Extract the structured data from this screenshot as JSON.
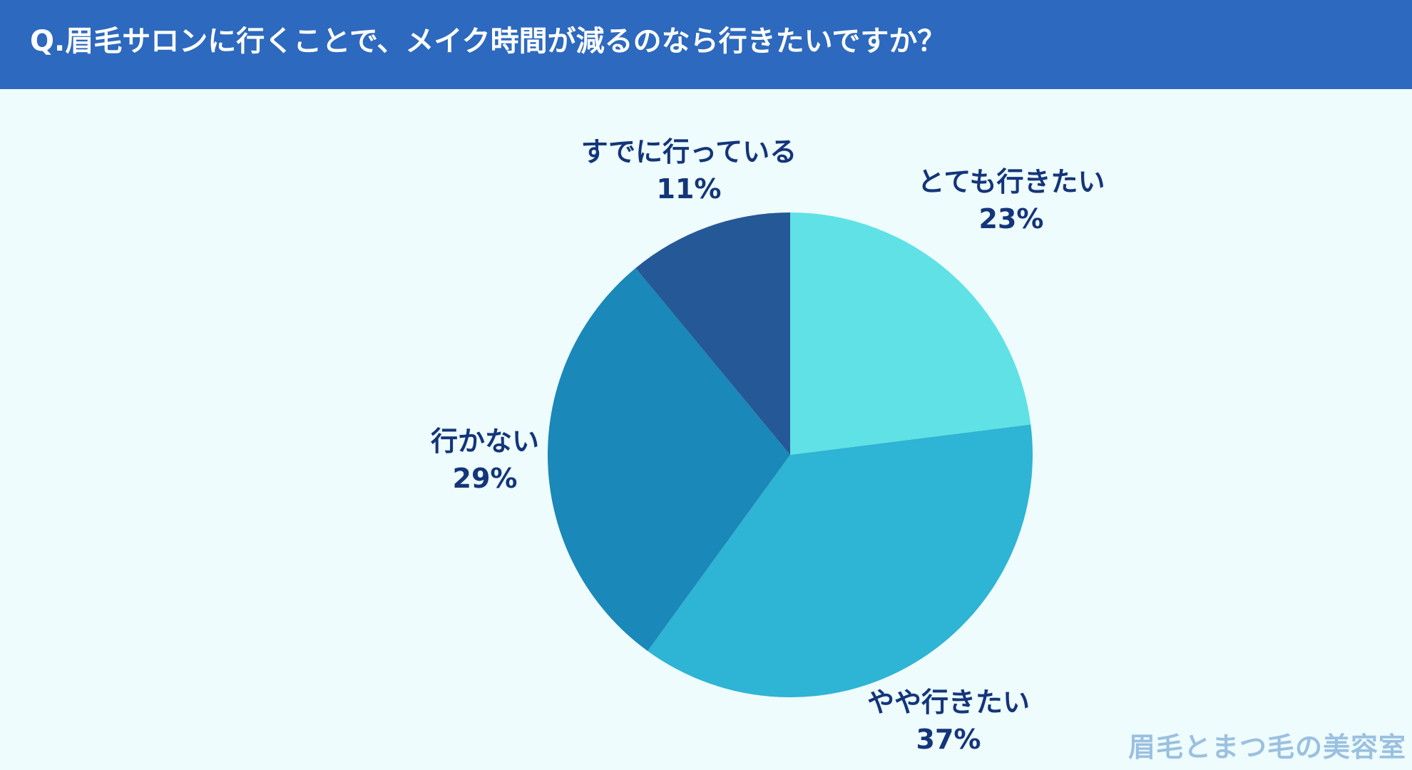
{
  "header": {
    "title": "Q.眉毛サロンに行くことで、メイク時間が減るのなら行きたいですか？"
  },
  "chart_data": {
    "type": "pie",
    "start": "12 o'clock",
    "direction": "clockwise",
    "categories": [
      "とても行きたい",
      "やや行きたい",
      "行かない",
      "すでに行っている"
    ],
    "values": [
      23,
      37,
      29,
      11
    ],
    "value_labels": [
      "23%",
      "37%",
      "29%",
      "11%"
    ],
    "colors": [
      "#5fe1e6",
      "#2eb4d4",
      "#1a88b8",
      "#255896"
    ],
    "label_color": "#14357a",
    "legend": "none"
  },
  "watermark": "眉毛とまつ毛の美容室",
  "colors": {
    "header_bg": "#2d69be",
    "page_bg": "#eefcfe"
  }
}
